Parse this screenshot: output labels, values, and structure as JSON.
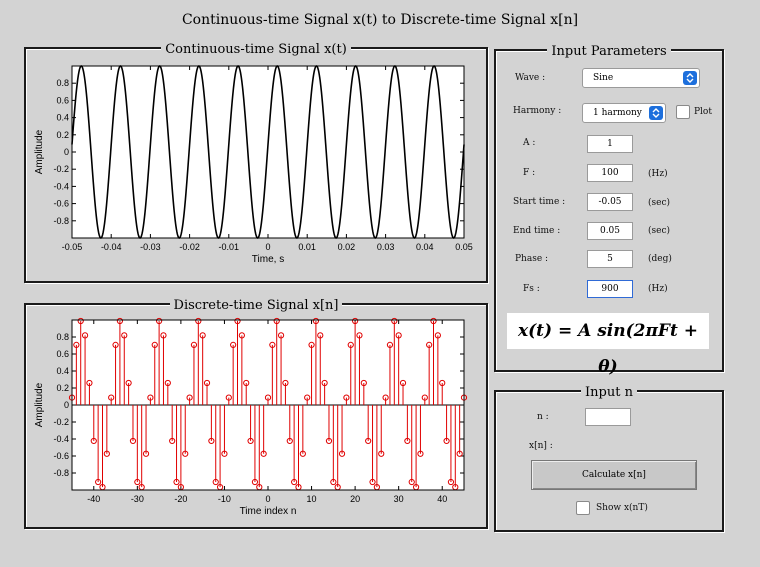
{
  "window_title": "Continuous-time Signal x(t) to Discrete-time Signal x[n]",
  "continuous_panel": {
    "title": "Continuous-time Signal x(t)"
  },
  "discrete_panel": {
    "title": "Discrete-time Signal x[n]"
  },
  "input_parameters": {
    "title": "Input Parameters",
    "wave_label": "Wave :",
    "wave_value": "Sine",
    "harmony_label": "Harmony :",
    "harmony_value": "1 harmony",
    "plot_label": "Plot",
    "a_label": "A :",
    "a_value": "1",
    "f_label": "F :",
    "f_value": "100",
    "f_unit": "(Hz)",
    "start_label": "Start time :",
    "start_value": "-0.05",
    "start_unit": "(sec)",
    "end_label": "End time :",
    "end_value": "0.05",
    "end_unit": "(sec)",
    "phase_label": "Phase :",
    "phase_value": "5",
    "phase_unit": "(deg)",
    "fs_label": "Fs :",
    "fs_value": "900",
    "fs_unit": "(Hz)",
    "formula": "x(t) = A sin(2πFt + θ)"
  },
  "input_n": {
    "title": "Input n",
    "n_label": "n :",
    "n_value": "",
    "xn_label": "x[n] :",
    "calculate_label": "Calculate x[n]",
    "show_label": "Show x(nT)"
  },
  "chart_data": [
    {
      "type": "line",
      "xlabel": "Time, s",
      "ylabel": "Amplitude",
      "xlim": [
        -0.05,
        0.05
      ],
      "ylim": [
        -1,
        1
      ],
      "x_ticks": [
        -0.05,
        -0.04,
        -0.03,
        -0.02,
        -0.01,
        0,
        0.01,
        0.02,
        0.03,
        0.04,
        0.05
      ],
      "x_tick_labels": [
        "-0.05",
        "-0.04",
        "-0.03",
        "-0.02",
        "-0.01",
        "0",
        "0.01",
        "0.02",
        "0.03",
        "0.04",
        "0.05"
      ],
      "y_ticks": [
        -0.8,
        -0.6,
        -0.4,
        -0.2,
        0,
        0.2,
        0.4,
        0.6,
        0.8
      ],
      "y_tick_labels": [
        "-0.8",
        "-0.6",
        "-0.4",
        "-0.2",
        "0",
        "0.2",
        "0.4",
        "0.6",
        "0.8"
      ],
      "series": [
        {
          "function": "A*sin(2*pi*F*t + phase)",
          "A": 1,
          "F": 100,
          "phase_deg": 5,
          "color": "#000000"
        }
      ]
    },
    {
      "type": "stem",
      "xlabel": "Time index n",
      "ylabel": "Amplitude",
      "xlim": [
        -45,
        45
      ],
      "ylim": [
        -1,
        1
      ],
      "x_ticks": [
        -40,
        -30,
        -20,
        -10,
        0,
        10,
        20,
        30,
        40
      ],
      "x_tick_labels": [
        "-40",
        "-30",
        "-20",
        "-10",
        "0",
        "10",
        "20",
        "30",
        "40"
      ],
      "y_ticks": [
        -0.8,
        -0.6,
        -0.4,
        -0.2,
        0,
        0.2,
        0.4,
        0.6,
        0.8
      ],
      "y_tick_labels": [
        "-0.8",
        "-0.6",
        "-0.4",
        "-0.2",
        "0",
        "0.2",
        "0.4",
        "0.6",
        "0.8"
      ],
      "series": [
        {
          "function": "A*sin(2*pi*F*n/Fs + phase)",
          "A": 1,
          "F": 100,
          "Fs": 900,
          "phase_deg": 5,
          "n_range": [
            -45,
            45
          ],
          "color": "#e00000"
        }
      ]
    }
  ]
}
